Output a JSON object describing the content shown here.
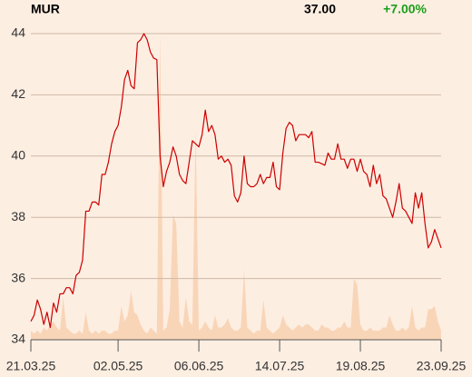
{
  "chart_data": {
    "type": "line",
    "title": "MUR",
    "price": "37.00",
    "change": "+7.00%",
    "series": [
      {
        "name": "Price",
        "color": "#cc0000",
        "values": [
          34.6,
          34.8,
          35.3,
          35.0,
          34.5,
          34.9,
          34.4,
          35.2,
          34.9,
          35.5,
          35.5,
          35.7,
          35.7,
          35.5,
          36.1,
          36.2,
          36.6,
          38.2,
          38.2,
          38.5,
          38.5,
          38.4,
          39.4,
          39.4,
          39.8,
          40.4,
          40.8,
          41.0,
          41.6,
          42.5,
          42.8,
          42.3,
          42.2,
          43.7,
          43.8,
          44.0,
          43.8,
          43.4,
          43.2,
          43.15,
          40.0,
          39.0,
          39.5,
          39.8,
          40.3,
          40.0,
          39.4,
          39.2,
          39.1,
          39.8,
          40.5,
          40.4,
          40.3,
          40.7,
          41.5,
          40.8,
          41.0,
          40.7,
          39.9,
          40.0,
          39.8,
          39.9,
          39.7,
          38.7,
          38.5,
          38.8,
          40.0,
          39.1,
          39.0,
          39.0,
          39.1,
          39.4,
          39.1,
          39.3,
          39.3,
          39.8,
          39.0,
          38.9,
          40.1,
          40.9,
          41.1,
          41.0,
          40.5,
          40.7,
          40.7,
          40.7,
          40.6,
          40.8,
          39.8,
          39.8,
          39.75,
          39.7,
          40.1,
          39.9,
          39.9,
          40.4,
          39.9,
          39.9,
          39.6,
          39.9,
          39.9,
          39.5,
          39.9,
          39.5,
          39.4,
          39.0,
          39.7,
          39.1,
          39.4,
          38.7,
          38.6,
          38.3,
          38.0,
          38.5,
          39.1,
          38.3,
          38.2,
          38.0,
          37.8,
          38.8,
          38.3,
          38.8,
          37.8,
          37.0,
          37.2,
          37.6,
          37.3,
          37.0
        ]
      },
      {
        "name": "Volume",
        "color": "#f9d5b8",
        "axis": "y2",
        "values": [
          3,
          2,
          3,
          2,
          4,
          3,
          5,
          6,
          4,
          3,
          14,
          4,
          3,
          2,
          2,
          3,
          2,
          9,
          3,
          2,
          3,
          2,
          3,
          3,
          2,
          2,
          3,
          3,
          11,
          6,
          8,
          16,
          9,
          8,
          5,
          3,
          2,
          4,
          3,
          2,
          100,
          3,
          4,
          10,
          41,
          38,
          6,
          4,
          14,
          6,
          5,
          69,
          3,
          4,
          6,
          4,
          3,
          8,
          4,
          4,
          5,
          7,
          4,
          3,
          3,
          4,
          23,
          4,
          3,
          2,
          3,
          3,
          13,
          4,
          3,
          2,
          3,
          4,
          8,
          5,
          4,
          3,
          4,
          5,
          4,
          5,
          5,
          4,
          3,
          3,
          5,
          4,
          4,
          3,
          3,
          4,
          4,
          6,
          4,
          4,
          20,
          18,
          5,
          3,
          3,
          4,
          3,
          3,
          3,
          4,
          4,
          8,
          5,
          3,
          3,
          4,
          3,
          4,
          11,
          4,
          3,
          4,
          4,
          10,
          10,
          11,
          6,
          3
        ]
      }
    ],
    "xlim": [
      0,
      127
    ],
    "xticks": [
      {
        "value": 0,
        "label": "21.03.25"
      },
      {
        "value": 27,
        "label": "02.05.25"
      },
      {
        "value": 52,
        "label": "06.06.25"
      },
      {
        "value": 77,
        "label": "14.07.25"
      },
      {
        "value": 102,
        "label": "19.08.25"
      },
      {
        "value": 127,
        "label": "23.09.25"
      }
    ],
    "ylim": [
      34,
      44
    ],
    "yticks": [
      34,
      36,
      38,
      40,
      42,
      44
    ],
    "y2lim": [
      0,
      100
    ],
    "grid": true
  }
}
